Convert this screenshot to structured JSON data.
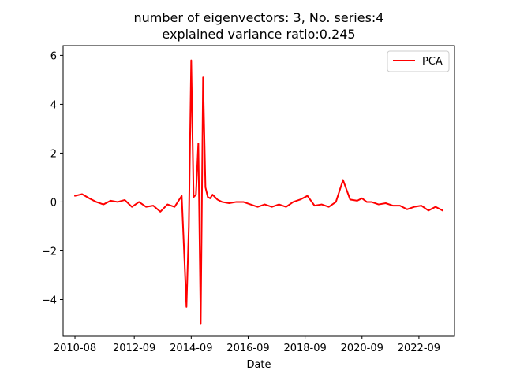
{
  "chart_data": {
    "type": "line",
    "title_line1": "number of eigenvectors: 3, No. series:4",
    "title_line2": "explained variance ratio:0.245",
    "xlabel": "Date",
    "ylabel": "",
    "ylim": [
      -5.5,
      6.4
    ],
    "xlim": [
      "2010-03",
      "2023-12"
    ],
    "x_ticks": [
      "2010-08",
      "2012-09",
      "2014-09",
      "2016-09",
      "2018-09",
      "2020-09",
      "2022-09"
    ],
    "y_ticks": [
      -4,
      -2,
      0,
      2,
      4,
      6
    ],
    "y_tick_labels": [
      "−4",
      "−2",
      "0",
      "2",
      "4",
      "6"
    ],
    "grid": false,
    "legend_position": "top-right",
    "series": [
      {
        "name": "PCA",
        "color": "#ff0000",
        "x": [
          "2010-08",
          "2010-11",
          "2011-02",
          "2011-05",
          "2011-08",
          "2011-11",
          "2012-02",
          "2012-05",
          "2012-08",
          "2012-11",
          "2013-02",
          "2013-05",
          "2013-08",
          "2013-11",
          "2014-02",
          "2014-05",
          "2014-07",
          "2014-08",
          "2014-09",
          "2014-10",
          "2014-11",
          "2014-12",
          "2015-01",
          "2015-02",
          "2015-03",
          "2015-04",
          "2015-05",
          "2015-06",
          "2015-07",
          "2015-08",
          "2015-10",
          "2016-01",
          "2016-04",
          "2016-07",
          "2016-10",
          "2017-01",
          "2017-04",
          "2017-07",
          "2017-10",
          "2018-01",
          "2018-04",
          "2018-07",
          "2018-10",
          "2019-01",
          "2019-04",
          "2019-07",
          "2019-10",
          "2020-01",
          "2020-04",
          "2020-07",
          "2020-09",
          "2020-11",
          "2021-01",
          "2021-04",
          "2021-07",
          "2021-10",
          "2022-01",
          "2022-04",
          "2022-07",
          "2022-10",
          "2023-01",
          "2023-04",
          "2023-07"
        ],
        "y": [
          0.25,
          0.32,
          0.15,
          0.0,
          -0.1,
          0.05,
          0.0,
          0.08,
          -0.2,
          0.0,
          -0.2,
          -0.15,
          -0.4,
          -0.1,
          -0.2,
          0.25,
          -4.3,
          -1.0,
          5.8,
          0.2,
          0.3,
          2.4,
          -5.0,
          5.1,
          0.6,
          0.2,
          0.15,
          0.3,
          0.2,
          0.1,
          0.0,
          -0.05,
          0.0,
          0.0,
          -0.1,
          -0.2,
          -0.1,
          -0.2,
          -0.1,
          -0.2,
          0.0,
          0.1,
          0.25,
          -0.15,
          -0.1,
          -0.2,
          0.0,
          0.9,
          0.1,
          0.05,
          0.15,
          0.0,
          0.0,
          -0.1,
          -0.05,
          -0.15,
          -0.15,
          -0.3,
          -0.2,
          -0.15,
          -0.35,
          -0.2,
          -0.35
        ]
      }
    ]
  }
}
